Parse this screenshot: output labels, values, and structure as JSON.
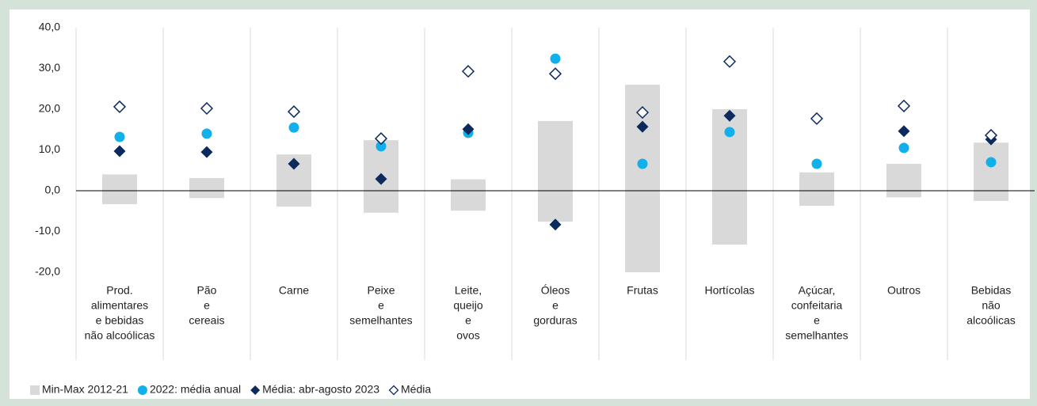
{
  "chart_data": {
    "type": "range-dot",
    "categories": [
      [
        "Prod.",
        "alimentares",
        "e bebidas",
        "não alcoólicas"
      ],
      [
        "Pão",
        "e",
        "cereais"
      ],
      [
        "Carne"
      ],
      [
        "Peixe",
        "e",
        "semelhantes"
      ],
      [
        "Leite,",
        "queijo",
        "e",
        "ovos"
      ],
      [
        "Óleos",
        "e",
        "gorduras"
      ],
      [
        "Frutas"
      ],
      [
        "Hortícolas"
      ],
      [
        "Açúcar,",
        "confeitaria",
        "e",
        "semelhantes"
      ],
      [
        "Outros"
      ],
      [
        "Bebidas",
        "não",
        "alcoólicas"
      ]
    ],
    "series": [
      {
        "name": "Min-Max 2012-21",
        "color": "#d9d9d9",
        "marker": "range",
        "min": [
          -3.3,
          -1.8,
          -3.9,
          -5.4,
          -4.9,
          -7.6,
          -20,
          -13.2,
          -3.7,
          -1.6,
          -2.5
        ],
        "max": [
          4.0,
          3.1,
          8.9,
          12.4,
          2.8,
          17.1,
          26.0,
          20.0,
          4.5,
          6.6,
          11.8
        ]
      },
      {
        "name": "2022: média anual",
        "color": "#12b0ea",
        "marker": "circle",
        "values": [
          13.2,
          14.0,
          15.5,
          10.9,
          14.2,
          32.4,
          6.6,
          14.4,
          6.6,
          10.5,
          7.0
        ]
      },
      {
        "name": "Média: abr-agosto 2023",
        "color": "#0c2a5e",
        "marker": "diamond",
        "values": [
          9.7,
          9.5,
          6.6,
          2.9,
          15.1,
          -8.3,
          15.7,
          18.4,
          17.7,
          14.6,
          12.6
        ]
      },
      {
        "name": "Média",
        "color": "#0c2a5e",
        "marker": "open-diamond",
        "values": [
          20.6,
          20.2,
          19.4,
          12.8,
          29.3,
          28.7,
          19.2,
          31.7,
          17.7,
          20.8,
          13.6
        ]
      }
    ],
    "ylim": [
      -20,
      40
    ],
    "yticks": [
      {
        "value": -20,
        "label": "-20,0"
      },
      {
        "value": -10,
        "label": "-10,0"
      },
      {
        "value": 0,
        "label": "0,0"
      },
      {
        "value": 10,
        "label": "10,0"
      },
      {
        "value": 20,
        "label": "20,0"
      },
      {
        "value": 30,
        "label": "30,0"
      },
      {
        "value": 40,
        "label": "40,0"
      }
    ]
  }
}
